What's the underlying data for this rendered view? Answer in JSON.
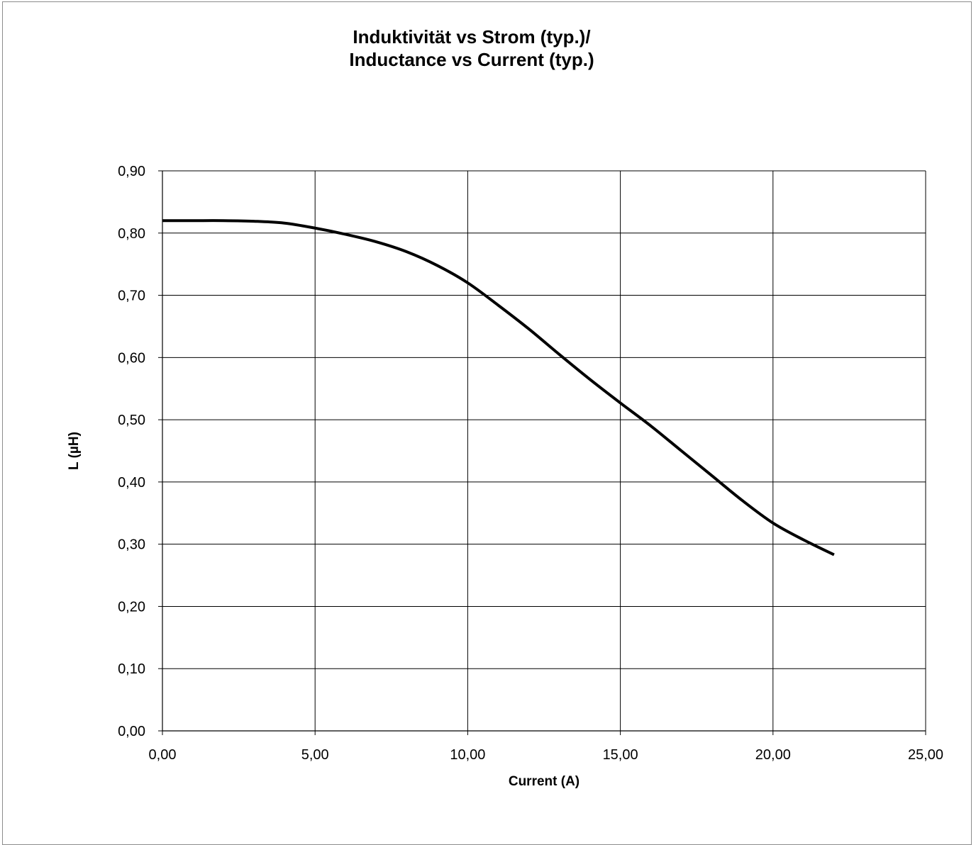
{
  "chart_data": {
    "type": "line",
    "title_lines": [
      "Induktivität vs Strom (typ.)/",
      "Inductance vs Current (typ.)"
    ],
    "xlabel": "Current (A)",
    "ylabel": "L (µH)",
    "xlim": [
      0,
      25
    ],
    "ylim": [
      0,
      0.9
    ],
    "x_ticks": [
      "0,00",
      "5,00",
      "10,00",
      "15,00",
      "20,00",
      "25,00"
    ],
    "y_ticks": [
      "0,00",
      "0,10",
      "0,20",
      "0,30",
      "0,40",
      "0,50",
      "0,60",
      "0,70",
      "0,80",
      "0,90"
    ],
    "grid": true,
    "legend": "none",
    "line_color": "#000000",
    "series": [
      {
        "x": [
          0,
          1,
          2,
          3,
          4,
          5,
          6,
          7,
          8,
          9,
          10,
          11,
          12,
          13,
          14,
          15,
          16,
          17,
          18,
          19,
          20,
          21,
          22
        ],
        "values": [
          0.82,
          0.82,
          0.82,
          0.819,
          0.816,
          0.808,
          0.798,
          0.786,
          0.77,
          0.748,
          0.72,
          0.684,
          0.646,
          0.605,
          0.565,
          0.527,
          0.49,
          0.45,
          0.41,
          0.37,
          0.334,
          0.307,
          0.283
        ]
      }
    ]
  }
}
